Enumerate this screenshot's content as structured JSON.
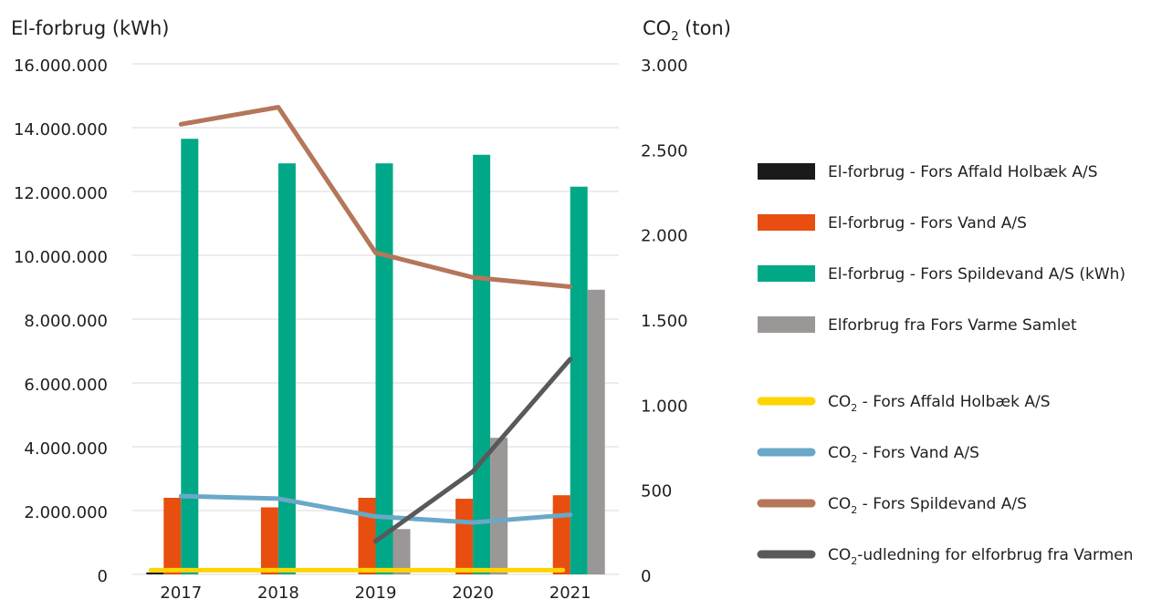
{
  "chart_data": {
    "type": "bar",
    "y1_label_main": "El-forbrug (kWh)",
    "y2_label_main": "CO",
    "y2_label_sub": "2",
    "y2_label_unit": " (ton)",
    "categories": [
      "2017",
      "2018",
      "2019",
      "2020",
      "2021"
    ],
    "y1lim": [
      0,
      16000000
    ],
    "y1_ticks": [
      {
        "value": 0,
        "label": "0"
      },
      {
        "value": 2000000,
        "label": "2.000.000"
      },
      {
        "value": 4000000,
        "label": "4.000.000"
      },
      {
        "value": 6000000,
        "label": "6.000.000"
      },
      {
        "value": 8000000,
        "label": "8.000.000"
      },
      {
        "value": 10000000,
        "label": "10.000.000"
      },
      {
        "value": 12000000,
        "label": "12.000.000"
      },
      {
        "value": 14000000,
        "label": "14.000.000"
      },
      {
        "value": 16000000,
        "label": "16.000.000"
      }
    ],
    "y2lim": [
      0,
      3000
    ],
    "y2_ticks": [
      {
        "value": 0,
        "label": "0"
      },
      {
        "value": 500,
        "label": "500"
      },
      {
        "value": 1000,
        "label": "1.000"
      },
      {
        "value": 1500,
        "label": "1.500"
      },
      {
        "value": 2000,
        "label": "2.000"
      },
      {
        "value": 2500,
        "label": "2.500"
      },
      {
        "value": 3000,
        "label": "3.000"
      }
    ],
    "grid": true,
    "legend_position": "right",
    "bar_series": [
      {
        "name": "El-forbrug - Fors Affald Holbæk A/S",
        "color": "#1a1a1a",
        "values": [
          60000,
          0,
          0,
          0,
          0
        ]
      },
      {
        "name": "El-forbrug - Fors Vand A/S",
        "color": "#e84e0f",
        "values": [
          2400000,
          2100000,
          2400000,
          2370000,
          2480000
        ]
      },
      {
        "name": "El-forbrug - Fors Spildevand A/S (kWh)",
        "color": "#00a887",
        "values": [
          13650000,
          12880000,
          12880000,
          13150000,
          12150000
        ]
      },
      {
        "name": "Elforbrug fra Fors Varme Samlet",
        "color": "#9a9796",
        "values": [
          null,
          null,
          1420000,
          4280000,
          8920000
        ]
      }
    ],
    "line_series": [
      {
        "name_main": "CO",
        "name_sub": "2",
        "name_rest": " - Fors Affald Holbæk A/S",
        "color": "#ffd400",
        "values": [
          25,
          25,
          25,
          25,
          25
        ]
      },
      {
        "name_main": "CO",
        "name_sub": "2",
        "name_rest": " - Fors Vand A/S",
        "color": "#6aa8c8",
        "values": [
          460,
          445,
          340,
          305,
          350
        ]
      },
      {
        "name_main": "CO",
        "name_sub": "2",
        "name_rest": " - Fors Spildevand A/S",
        "color": "#b5765a",
        "values": [
          2645,
          2745,
          1890,
          1745,
          1690
        ]
      },
      {
        "name_main": "CO",
        "name_sub": "2",
        "name_rest": "-udledning for elforbrug fra Varmen",
        "color": "#595959",
        "values": [
          null,
          null,
          195,
          605,
          1265
        ]
      }
    ]
  }
}
